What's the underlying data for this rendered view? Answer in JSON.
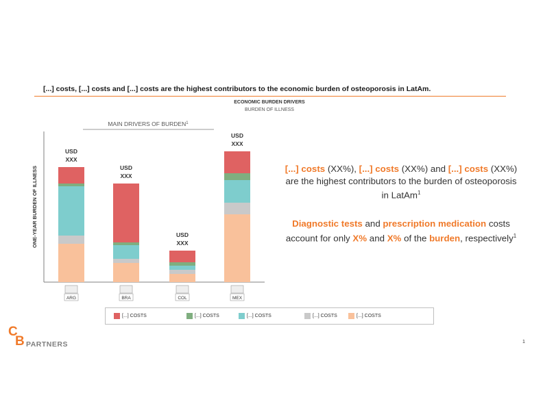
{
  "headline": "[...] costs, [...] costs and [...] costs are the highest contributors to the economic burden of osteoporosis in LatAm.",
  "chart_data": {
    "type": "bar",
    "stacked": true,
    "title": "ECONOMIC BURDEN DRIVERS",
    "subtitle": "BURDEN OF ILLNESS",
    "ylabel": "ONE-YEAR BURDEN OF ILLNESS",
    "group_label": "MAIN DRIVERS  OF BURDEN",
    "group_label_sup": "1",
    "categories": [
      "ARG",
      "BRA",
      "COL",
      "MEX"
    ],
    "total_labels": [
      "USD\nXXX",
      "USD\nXXX",
      "USD\nXXX",
      "USD\nXXX"
    ],
    "series": [
      {
        "name": "[...] COSTS",
        "color": "#f9c19b",
        "values": [
          56,
          28,
          12,
          99
        ]
      },
      {
        "name": "[...] COSTS",
        "color": "#c9c9c9",
        "values": [
          12,
          6,
          6,
          17
        ]
      },
      {
        "name": "[...] COSTS",
        "color": "#7ecdcd",
        "values": [
          72,
          20,
          6,
          33
        ]
      },
      {
        "name": "[...] COSTS",
        "color": "#7fae7f",
        "values": [
          4,
          4,
          5,
          10
        ]
      },
      {
        "name": "[...] COSTS",
        "color": "#df6262",
        "values": [
          24,
          86,
          17,
          32
        ]
      }
    ],
    "legend_order": [
      4,
      3,
      2,
      1,
      0
    ],
    "grid": false,
    "legend_position": "bottom"
  },
  "callout": {
    "p1": [
      {
        "text": "[...] costs",
        "hl": true
      },
      {
        "text": " (XX%), ",
        "hl": false
      },
      {
        "text": "[...] costs",
        "hl": true
      },
      {
        "text": " (XX%) and ",
        "hl": false
      },
      {
        "text": "[...] costs",
        "hl": true
      },
      {
        "text": " (XX%) are the highest contributors to the burden of osteoporosis in LatAm",
        "hl": false
      }
    ],
    "p1_sup": "1",
    "p2": [
      {
        "text": "Diagnostic tests",
        "hl": true
      },
      {
        "text": " and ",
        "hl": false
      },
      {
        "text": "prescription medication",
        "hl": true
      },
      {
        "text": " costs account for only ",
        "hl": false
      },
      {
        "text": "X%",
        "hl": true
      },
      {
        "text": " and ",
        "hl": false
      },
      {
        "text": "X%",
        "hl": true
      },
      {
        "text": " of the ",
        "hl": false
      },
      {
        "text": "burden",
        "hl": true
      },
      {
        "text": ", respectively",
        "hl": false
      }
    ],
    "p2_sup": "1"
  },
  "logo": {
    "c": "C",
    "b": "B",
    "text": "PARTNERS"
  },
  "page_number": "1",
  "colors": {
    "accent": "#f07a2a",
    "text": "#333333"
  }
}
